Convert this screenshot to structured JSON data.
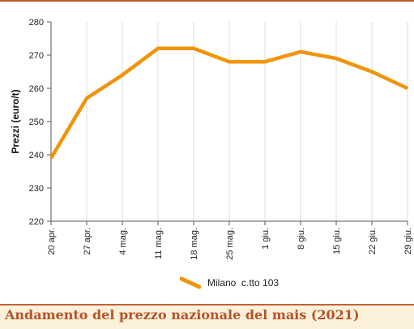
{
  "chart_data": {
    "type": "line",
    "title": "",
    "xlabel": "",
    "ylabel": "Prezzi (euro/t)",
    "ylim": [
      220,
      280
    ],
    "yticks": [
      220,
      230,
      240,
      250,
      260,
      270,
      280
    ],
    "grid": "vertical",
    "legend_position": "bottom-center",
    "categories": [
      "20 apr.",
      "27 apr.",
      "4 mag.",
      "11 mag.",
      "18 mag.",
      "25 mag.",
      "1 giu.",
      "8 giu.",
      "15 giu.",
      "22 giu.",
      "29 giu."
    ],
    "series": [
      {
        "name": "Milano  c.tto 103",
        "color": "#f0940a",
        "values": [
          239,
          257,
          264,
          272,
          272,
          268,
          268,
          271,
          269,
          265,
          260
        ]
      }
    ]
  },
  "caption": {
    "text": "Andamento del prezzo nazionale del mais (2021)",
    "color": "#b4532a",
    "background": "#fbf0d9"
  }
}
